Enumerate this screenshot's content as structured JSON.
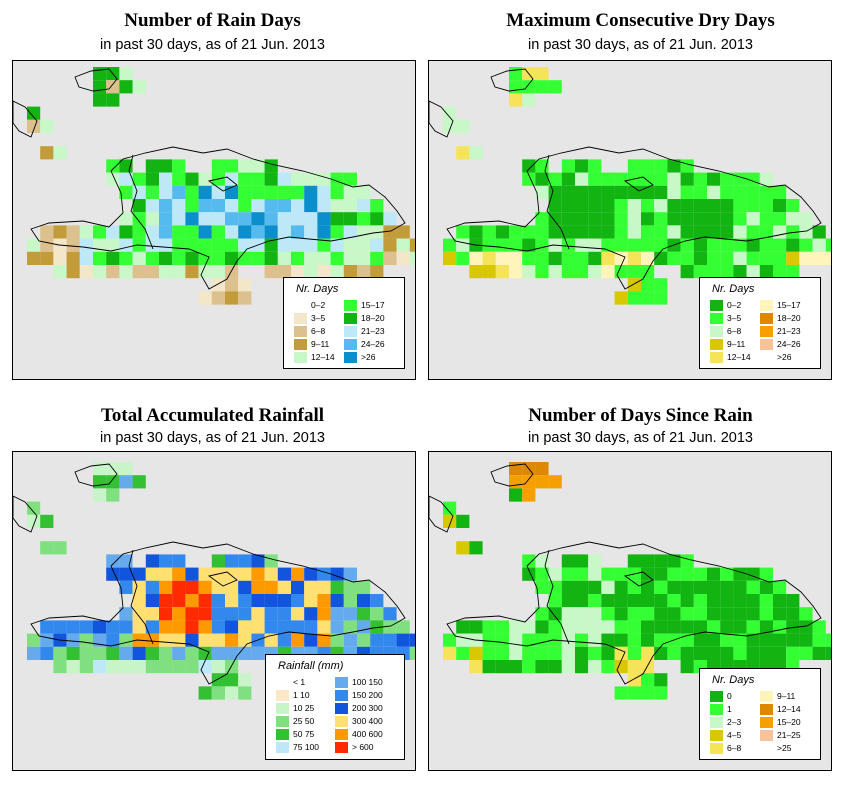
{
  "panels": [
    {
      "id": "rain-days",
      "title": "Number of Rain Days",
      "subtitle": "in past 30 days, as of  21 Jun. 2013",
      "legend": {
        "title": "Nr. Days",
        "items": [
          {
            "label": "0–2",
            "color": "#ffffff"
          },
          {
            "label": "3–5",
            "color": "#f4e6c8"
          },
          {
            "label": "6–8",
            "color": "#dcc08e"
          },
          {
            "label": "9–11",
            "color": "#c29c3a"
          },
          {
            "label": "12–14",
            "color": "#c8f7c8"
          },
          {
            "label": "15–17",
            "color": "#33ff33"
          },
          {
            "label": "18–20",
            "color": "#11b411"
          },
          {
            "label": "21–23",
            "color": "#bce8f7"
          },
          {
            "label": "24–26",
            "color": "#55bbee"
          },
          {
            "label": ">26",
            "color": "#0a8fcc"
          }
        ]
      }
    },
    {
      "id": "dry-days",
      "title": "Maximum Consecutive Dry Days",
      "subtitle": "in past 30 days, as of  21 Jun. 2013",
      "legend": {
        "title": "Nr. Days",
        "items": [
          {
            "label": "0–2",
            "color": "#11b411"
          },
          {
            "label": "3–5",
            "color": "#33ff33"
          },
          {
            "label": "6–8",
            "color": "#c8f7c8"
          },
          {
            "label": "9–11",
            "color": "#d9c800"
          },
          {
            "label": "12–14",
            "color": "#f5e35a"
          },
          {
            "label": "15–17",
            "color": "#fff5bb"
          },
          {
            "label": "18–20",
            "color": "#dd8800"
          },
          {
            "label": "21–23",
            "color": "#f5a000"
          },
          {
            "label": "24–26",
            "color": "#f8c39a"
          },
          {
            "label": ">26",
            "color": "#ffffff"
          }
        ]
      }
    },
    {
      "id": "rainfall",
      "title": "Total Accumulated Rainfall",
      "subtitle": "in past 30 days, as of  21 Jun. 2013",
      "legend": {
        "title": "Rainfall (mm)",
        "items": [
          {
            "label": "< 1",
            "color": "#ffffff"
          },
          {
            "label": "1    10",
            "color": "#fbe8c8"
          },
          {
            "label": "10   25",
            "color": "#c8f5c8"
          },
          {
            "label": "25   50",
            "color": "#80e080"
          },
          {
            "label": "50   75",
            "color": "#33c033"
          },
          {
            "label": "75   100",
            "color": "#bce8f7"
          },
          {
            "label": "100  150",
            "color": "#66aaee"
          },
          {
            "label": "150  200",
            "color": "#3388ee"
          },
          {
            "label": "200  300",
            "color": "#1155dd"
          },
          {
            "label": "300  400",
            "color": "#ffe070"
          },
          {
            "label": "400  600",
            "color": "#ff9900"
          },
          {
            "label": "> 600",
            "color": "#ff2a00"
          }
        ]
      }
    },
    {
      "id": "since-rain",
      "title": "Number of Days Since Rain",
      "subtitle": "in past 30 days, as of  21 Jun. 2013",
      "legend": {
        "title": "Nr. Days",
        "items": [
          {
            "label": "0",
            "color": "#11b411"
          },
          {
            "label": "1",
            "color": "#33ff33"
          },
          {
            "label": "2–3",
            "color": "#c8f7c8"
          },
          {
            "label": "4–5",
            "color": "#d9c800"
          },
          {
            "label": "6–8",
            "color": "#f5e35a"
          },
          {
            "label": "9–11",
            "color": "#fff5bb"
          },
          {
            "label": "12–14",
            "color": "#dd8800"
          },
          {
            "label": "15–20",
            "color": "#f5a000"
          },
          {
            "label": "21–25",
            "color": "#f8c39a"
          },
          {
            "label": ">25",
            "color": "#ffffff"
          }
        ]
      }
    }
  ]
}
